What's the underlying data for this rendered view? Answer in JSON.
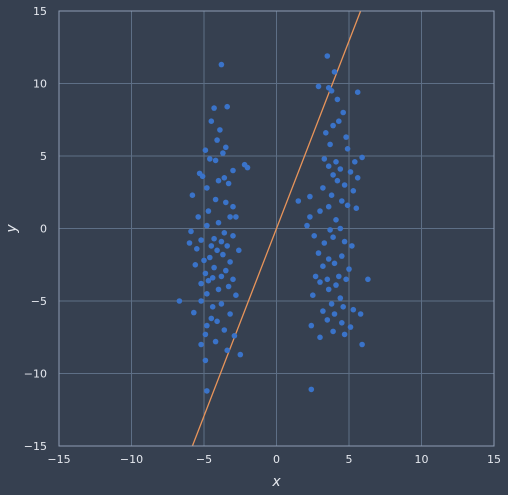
{
  "chart_data": {
    "type": "scatter",
    "xlabel": "x",
    "ylabel": "y",
    "xlim": [
      -15,
      15
    ],
    "ylim": [
      -15,
      15
    ],
    "xticks": [
      -15,
      -10,
      -5,
      0,
      5,
      10,
      15
    ],
    "yticks": [
      -15,
      -10,
      -5,
      0,
      5,
      10,
      15
    ],
    "grid": true,
    "colors": {
      "background": "#364050",
      "grid": "#5e6f86",
      "frame": "#8e9db3",
      "points": "#3a73c9",
      "line": "#e8945a"
    },
    "series": [
      {
        "kind": "points",
        "points": [
          [
            -3.8,
            11.3
          ],
          [
            -4.3,
            8.3
          ],
          [
            -3.4,
            8.4
          ],
          [
            -4.5,
            7.4
          ],
          [
            -3.9,
            6.8
          ],
          [
            -4.1,
            6.1
          ],
          [
            -3.5,
            5.6
          ],
          [
            -4.9,
            5.4
          ],
          [
            -3.7,
            5.2
          ],
          [
            -4.6,
            4.8
          ],
          [
            -4.2,
            4.7
          ],
          [
            -2.2,
            4.4
          ],
          [
            -2.0,
            4.2
          ],
          [
            -3.0,
            4.0
          ],
          [
            -5.3,
            3.8
          ],
          [
            -5.1,
            3.6
          ],
          [
            -3.6,
            3.5
          ],
          [
            -4.0,
            3.3
          ],
          [
            -3.3,
            3.1
          ],
          [
            -4.8,
            2.8
          ],
          [
            -5.8,
            2.3
          ],
          [
            -4.2,
            2.0
          ],
          [
            -3.5,
            1.8
          ],
          [
            -3.0,
            1.5
          ],
          [
            -4.7,
            1.2
          ],
          [
            -5.4,
            0.8
          ],
          [
            -3.2,
            0.8
          ],
          [
            -2.8,
            0.8
          ],
          [
            -4.0,
            0.4
          ],
          [
            -4.8,
            0.2
          ],
          [
            -5.9,
            -0.2
          ],
          [
            -3.6,
            -0.3
          ],
          [
            -3.0,
            -0.5
          ],
          [
            -4.3,
            -0.7
          ],
          [
            -5.2,
            -0.8
          ],
          [
            -3.8,
            -0.9
          ],
          [
            -6.0,
            -1.0
          ],
          [
            -4.5,
            -1.2
          ],
          [
            -3.4,
            -1.2
          ],
          [
            -5.5,
            -1.4
          ],
          [
            -4.1,
            -1.5
          ],
          [
            -2.6,
            -1.5
          ],
          [
            -3.7,
            -1.8
          ],
          [
            -4.6,
            -2.0
          ],
          [
            -5.0,
            -2.2
          ],
          [
            -3.2,
            -2.3
          ],
          [
            -5.6,
            -2.5
          ],
          [
            -4.3,
            -2.7
          ],
          [
            -3.5,
            -2.9
          ],
          [
            -4.9,
            -3.1
          ],
          [
            -3.8,
            -3.3
          ],
          [
            -4.4,
            -3.4
          ],
          [
            -3.0,
            -3.5
          ],
          [
            -4.7,
            -3.6
          ],
          [
            -5.2,
            -3.8
          ],
          [
            -3.3,
            -4.0
          ],
          [
            -4.0,
            -4.2
          ],
          [
            -4.8,
            -4.5
          ],
          [
            -2.8,
            -4.6
          ],
          [
            -6.7,
            -5.0
          ],
          [
            -5.2,
            -5.0
          ],
          [
            -3.8,
            -5.2
          ],
          [
            -4.4,
            -5.4
          ],
          [
            -5.7,
            -5.8
          ],
          [
            -3.2,
            -5.9
          ],
          [
            -4.5,
            -6.2
          ],
          [
            -4.1,
            -6.4
          ],
          [
            -4.8,
            -6.7
          ],
          [
            -3.6,
            -7.0
          ],
          [
            -4.9,
            -7.3
          ],
          [
            -2.9,
            -7.4
          ],
          [
            -4.2,
            -7.8
          ],
          [
            -5.2,
            -8.0
          ],
          [
            -3.4,
            -8.4
          ],
          [
            -2.5,
            -8.7
          ],
          [
            -4.9,
            -9.1
          ],
          [
            -4.8,
            -11.2
          ],
          [
            3.5,
            11.9
          ],
          [
            4.0,
            10.8
          ],
          [
            2.9,
            9.8
          ],
          [
            3.6,
            9.7
          ],
          [
            3.8,
            9.5
          ],
          [
            5.6,
            9.4
          ],
          [
            4.2,
            8.9
          ],
          [
            4.6,
            8.0
          ],
          [
            4.3,
            7.4
          ],
          [
            3.9,
            7.1
          ],
          [
            3.4,
            6.6
          ],
          [
            4.8,
            6.3
          ],
          [
            3.7,
            5.8
          ],
          [
            4.9,
            5.5
          ],
          [
            5.9,
            4.9
          ],
          [
            3.3,
            4.8
          ],
          [
            4.1,
            4.6
          ],
          [
            5.4,
            4.6
          ],
          [
            3.6,
            4.3
          ],
          [
            4.4,
            4.1
          ],
          [
            5.1,
            3.9
          ],
          [
            3.9,
            3.7
          ],
          [
            5.6,
            3.5
          ],
          [
            4.2,
            3.3
          ],
          [
            4.7,
            3.0
          ],
          [
            3.2,
            2.8
          ],
          [
            5.3,
            2.6
          ],
          [
            3.8,
            2.3
          ],
          [
            2.3,
            2.2
          ],
          [
            1.5,
            1.9
          ],
          [
            4.5,
            1.9
          ],
          [
            4.9,
            1.6
          ],
          [
            3.6,
            1.5
          ],
          [
            5.5,
            1.4
          ],
          [
            3.0,
            1.2
          ],
          [
            2.3,
            0.8
          ],
          [
            4.1,
            0.6
          ],
          [
            2.1,
            0.2
          ],
          [
            4.4,
            0.0
          ],
          [
            3.7,
            -0.1
          ],
          [
            2.6,
            -0.5
          ],
          [
            3.9,
            -0.6
          ],
          [
            4.7,
            -0.9
          ],
          [
            3.3,
            -1.0
          ],
          [
            5.2,
            -1.2
          ],
          [
            2.9,
            -1.7
          ],
          [
            4.5,
            -1.9
          ],
          [
            3.6,
            -2.1
          ],
          [
            4.0,
            -2.4
          ],
          [
            3.2,
            -2.6
          ],
          [
            5.0,
            -2.8
          ],
          [
            2.7,
            -3.3
          ],
          [
            4.3,
            -3.3
          ],
          [
            3.5,
            -3.5
          ],
          [
            4.8,
            -3.5
          ],
          [
            6.3,
            -3.5
          ],
          [
            3.0,
            -3.7
          ],
          [
            4.1,
            -3.9
          ],
          [
            3.6,
            -4.2
          ],
          [
            2.5,
            -4.6
          ],
          [
            4.4,
            -4.8
          ],
          [
            3.8,
            -5.2
          ],
          [
            4.6,
            -5.4
          ],
          [
            5.3,
            -5.6
          ],
          [
            3.2,
            -5.7
          ],
          [
            4.0,
            -5.9
          ],
          [
            5.8,
            -5.9
          ],
          [
            3.5,
            -6.3
          ],
          [
            4.5,
            -6.5
          ],
          [
            2.4,
            -6.7
          ],
          [
            5.1,
            -6.8
          ],
          [
            3.9,
            -7.1
          ],
          [
            4.7,
            -7.3
          ],
          [
            3.0,
            -7.5
          ],
          [
            5.9,
            -8.0
          ],
          [
            2.4,
            -11.1
          ]
        ]
      },
      {
        "kind": "line",
        "points": [
          [
            -5.8,
            -15
          ],
          [
            5.8,
            15
          ]
        ]
      }
    ]
  }
}
